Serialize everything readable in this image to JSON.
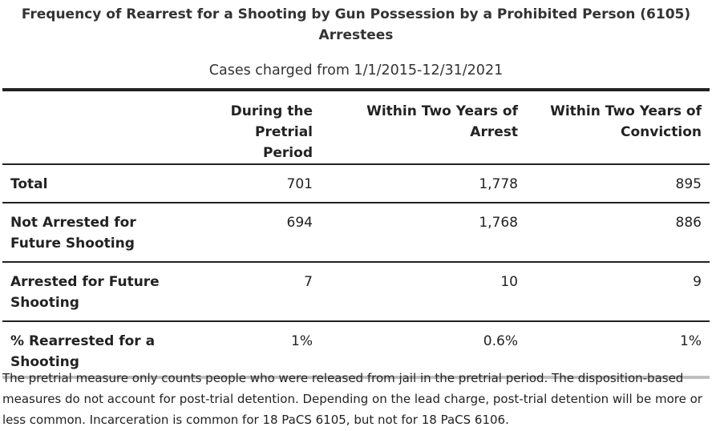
{
  "title": "Frequency of Rearrest for a Shooting by Gun Possession by a Prohibited Person (6105) Arrestees",
  "subtitle": "Cases charged from 1/1/2015-12/31/2021",
  "table": {
    "headers": [
      "",
      "During the Pretrial Period",
      "Within Two Years of Arrest",
      "Within Two Years of Conviction"
    ],
    "rows": [
      {
        "label": "Total",
        "values": [
          "701",
          "1,778",
          "895"
        ]
      },
      {
        "label": "Not Arrested for Future Shooting",
        "values": [
          "694",
          "1,768",
          "886"
        ]
      },
      {
        "label": "Arrested for Future Shooting",
        "values": [
          "7",
          "10",
          "9"
        ]
      },
      {
        "label": "% Rearrested for a Shooting",
        "values": [
          "1%",
          "0.6%",
          "1%"
        ]
      }
    ]
  },
  "note": "The pretrial measure only counts people who were released from jail in the pretrial period. The disposition-based measures do not account for post-trial detention. Depending on the lead charge, post-trial detention will be more or less common. Incarceration is common for 18 PaCS 6105, but not for 18 PaCS 6106."
}
